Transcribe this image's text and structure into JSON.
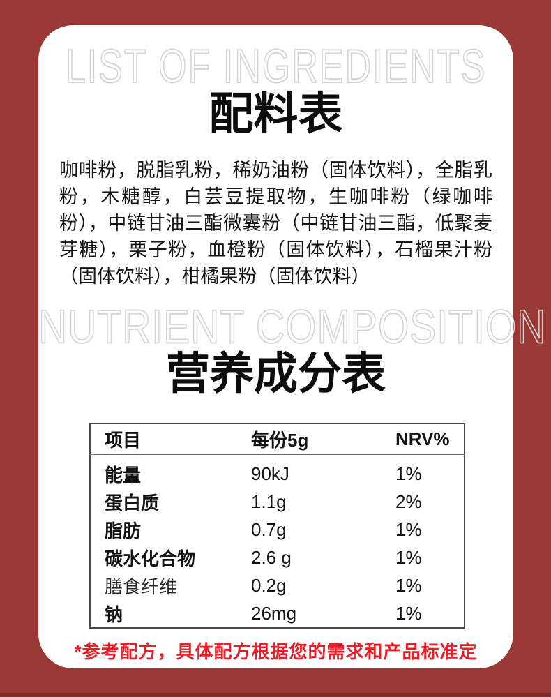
{
  "colors": {
    "background_maroon": "#9a3835",
    "bottom_strip": "#7e2b2a",
    "card_white": "#ffffff",
    "outline_heading_gray": "#d4d4d4",
    "footnote_red": "#ee1c25",
    "table_border": "#4a4a4a"
  },
  "ingredients_section": {
    "heading_en": "LIST OF INGREDIENTS",
    "heading_zh": "配料表",
    "body": "咖啡粉，脱脂乳粉，稀奶油粉（固体饮料），全脂乳粉，木糖醇，白芸豆提取物，生咖啡粉（绿咖啡粉），中链甘油三酯微囊粉（中链甘油三酯，低聚麦芽糖），栗子粉，血橙粉（固体饮料），石榴果汁粉（固体饮料），柑橘果粉（固体饮料）"
  },
  "nutrition_section": {
    "heading_en": "NUTRIENT COMPOSITION",
    "heading_zh": "营养成分表",
    "table": {
      "columns": [
        "项目",
        "每份5g",
        "NRV%"
      ],
      "rows": [
        {
          "item": "能量",
          "amount": "90kJ",
          "nrv": "1%"
        },
        {
          "item": "蛋白质",
          "amount": "1.1g",
          "nrv": "2%"
        },
        {
          "item": "脂肪",
          "amount": "0.7g",
          "nrv": "1%"
        },
        {
          "item": "碳水化合物",
          "amount": "2.6 g",
          "nrv": "1%"
        },
        {
          "item": "膳食纤维",
          "amount": "0.2g",
          "nrv": "1%"
        },
        {
          "item": "钠",
          "amount": "26mg",
          "nrv": "1%"
        }
      ]
    },
    "footnote": "*参考配方，具体配方根据您的需求和产品标准定"
  }
}
